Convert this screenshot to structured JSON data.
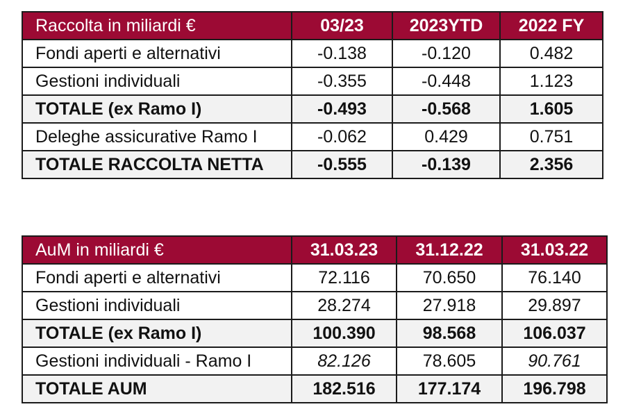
{
  "table1": {
    "headers": [
      "Raccolta in miliardi €",
      "03/23",
      "2023YTD",
      "2022 FY"
    ],
    "rows": [
      {
        "label": "Fondi aperti e alternativi",
        "values": [
          "-0.138",
          "-0.120",
          "0.482"
        ],
        "bold": false
      },
      {
        "label": "Gestioni individuali",
        "values": [
          "-0.355",
          "-0.448",
          "1.123"
        ],
        "bold": false
      },
      {
        "label": "TOTALE (ex Ramo I)",
        "values": [
          "-0.493",
          "-0.568",
          "1.605"
        ],
        "bold": true
      },
      {
        "label": "Deleghe assicurative Ramo I",
        "values": [
          "-0.062",
          "0.429",
          "0.751"
        ],
        "bold": false
      },
      {
        "label": "TOTALE RACCOLTA NETTA",
        "values": [
          "-0.555",
          "-0.139",
          "2.356"
        ],
        "bold": true
      }
    ]
  },
  "table2": {
    "headers": [
      "AuM in miliardi €",
      "31.03.23",
      "31.12.22",
      "31.03.22"
    ],
    "rows": [
      {
        "label": "Fondi aperti e alternativi",
        "values": [
          "72.116",
          "70.650",
          "76.140"
        ],
        "bold": false
      },
      {
        "label": "Gestioni individuali",
        "values": [
          "28.274",
          "27.918",
          "29.897"
        ],
        "bold": false
      },
      {
        "label": "TOTALE (ex Ramo I)",
        "values": [
          "100.390",
          "98.568",
          "106.037"
        ],
        "bold": true
      },
      {
        "label": "Gestioni individuali - Ramo I",
        "values": [
          "82.126",
          "78.605",
          "90.761"
        ],
        "bold": false
      },
      {
        "label": "TOTALE AUM",
        "values": [
          "182.516",
          "177.174",
          "196.798"
        ],
        "bold": true
      }
    ]
  }
}
